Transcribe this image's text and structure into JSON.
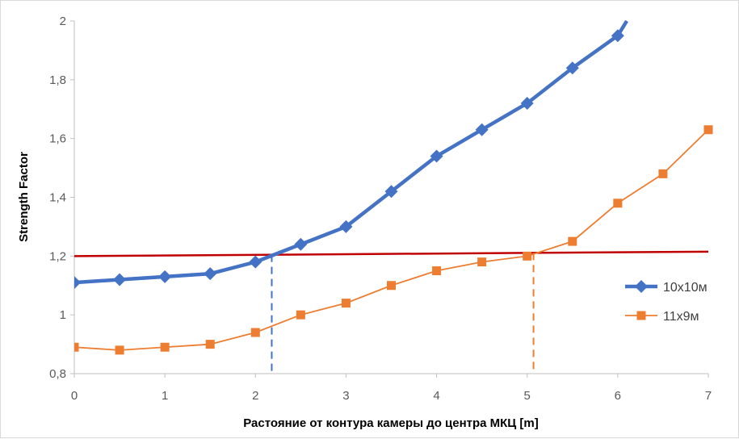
{
  "chart_data": {
    "type": "line",
    "title": "",
    "xlabel": "Растояние от контура камеры до центра МКЦ [m]",
    "ylabel": "Strength Factor",
    "xlim": [
      0,
      7
    ],
    "ylim": [
      0.8,
      2
    ],
    "x_ticks": [
      "0",
      "1",
      "2",
      "3",
      "4",
      "5",
      "6",
      "7"
    ],
    "y_ticks": [
      "0,8",
      "1",
      "1,2",
      "1,4",
      "1,6",
      "1,8",
      "2"
    ],
    "grid": false,
    "legend_position": "right",
    "series": [
      {
        "name": "10x10м",
        "color": "#4472c4",
        "marker": "diamond",
        "x": [
          0,
          0.5,
          1,
          1.5,
          2,
          2.5,
          3,
          3.5,
          4,
          4.5,
          5,
          5.5,
          6,
          6.1
        ],
        "values": [
          1.11,
          1.12,
          1.13,
          1.14,
          1.18,
          1.24,
          1.3,
          1.42,
          1.54,
          1.63,
          1.72,
          1.84,
          1.95,
          2.0
        ],
        "marker_count": 13
      },
      {
        "name": "11x9м",
        "color": "#ed7d31",
        "marker": "square",
        "x": [
          0,
          0.5,
          1,
          1.5,
          2,
          2.5,
          3,
          3.5,
          4,
          4.5,
          5,
          5.5,
          6,
          6.5,
          7
        ],
        "values": [
          0.89,
          0.88,
          0.89,
          0.9,
          0.94,
          1.0,
          1.04,
          1.1,
          1.15,
          1.18,
          1.2,
          1.25,
          1.38,
          1.48,
          1.63
        ]
      }
    ],
    "reference_line": {
      "color": "#c00000",
      "x": [
        0,
        7
      ],
      "y": [
        1.2,
        1.215
      ]
    },
    "vertical_markers": [
      {
        "x": 2.18,
        "color": "#4472c4",
        "dashed": true
      },
      {
        "x": 5.07,
        "color": "#ed7d31",
        "dashed": true
      }
    ]
  }
}
